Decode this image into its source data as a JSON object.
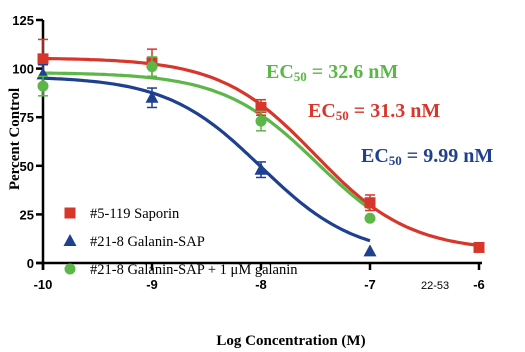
{
  "chart_data": {
    "type": "scatter",
    "xlabel": "Log Concentration (M)",
    "ylabel": "Percent Control",
    "xlim": [
      -10,
      -6
    ],
    "ylim": [
      0,
      125
    ],
    "xticks": [
      -10,
      -9,
      -8,
      -7,
      -6
    ],
    "xtick_labels": [
      "-10",
      "-9",
      "-8",
      "-7",
      "-6"
    ],
    "yticks": [
      0,
      25,
      50,
      75,
      100,
      125
    ],
    "ytick_labels": [
      "0",
      "25",
      "50",
      "75",
      "100",
      "125"
    ],
    "legend_position": "bottom-left",
    "note": "22-53",
    "series": [
      {
        "name": "#5-119 Saporin",
        "color": "#d7362b",
        "marker": "square",
        "x": [
          -10,
          -9,
          -8,
          -7,
          -6
        ],
        "y": [
          105,
          103,
          80,
          31,
          8
        ],
        "err": [
          10,
          7,
          4,
          4,
          0
        ],
        "fit": {
          "top": 105.5,
          "bottom": 6,
          "log_ec50": -7.5045,
          "hill": 1.0
        },
        "ec50_label": {
          "prefix": "EC",
          "subscript": "50",
          "suffix": " = 31.3 nM"
        }
      },
      {
        "name": "#21-8 Galanin-SAP",
        "color": "#1f3f8f",
        "marker": "triangle",
        "x": [
          -10,
          -9,
          -8,
          -7
        ],
        "y": [
          97,
          85,
          48,
          6
        ],
        "err": [
          5,
          5,
          4,
          0
        ],
        "fit": {
          "top": 96,
          "bottom": 3,
          "log_ec50": -8.0004,
          "hill": 1.0
        },
        "ec50_label": {
          "prefix": "EC",
          "subscript": "50",
          "suffix": " = 9.99 nM"
        }
      },
      {
        "name": "#21-8 Galanin-SAP + 1 μM galanin",
        "color": "#5cb648",
        "marker": "circle",
        "x": [
          -10,
          -9,
          -8,
          -7
        ],
        "y": [
          91,
          101,
          73,
          23
        ],
        "err": [
          5,
          5,
          5,
          0
        ],
        "fit": {
          "top": 98,
          "bottom": 5,
          "log_ec50": -7.4868,
          "hill": 1.0
        },
        "ec50_label": {
          "prefix": "EC",
          "subscript": "50",
          "suffix": " = 32.6 nM"
        }
      }
    ]
  }
}
